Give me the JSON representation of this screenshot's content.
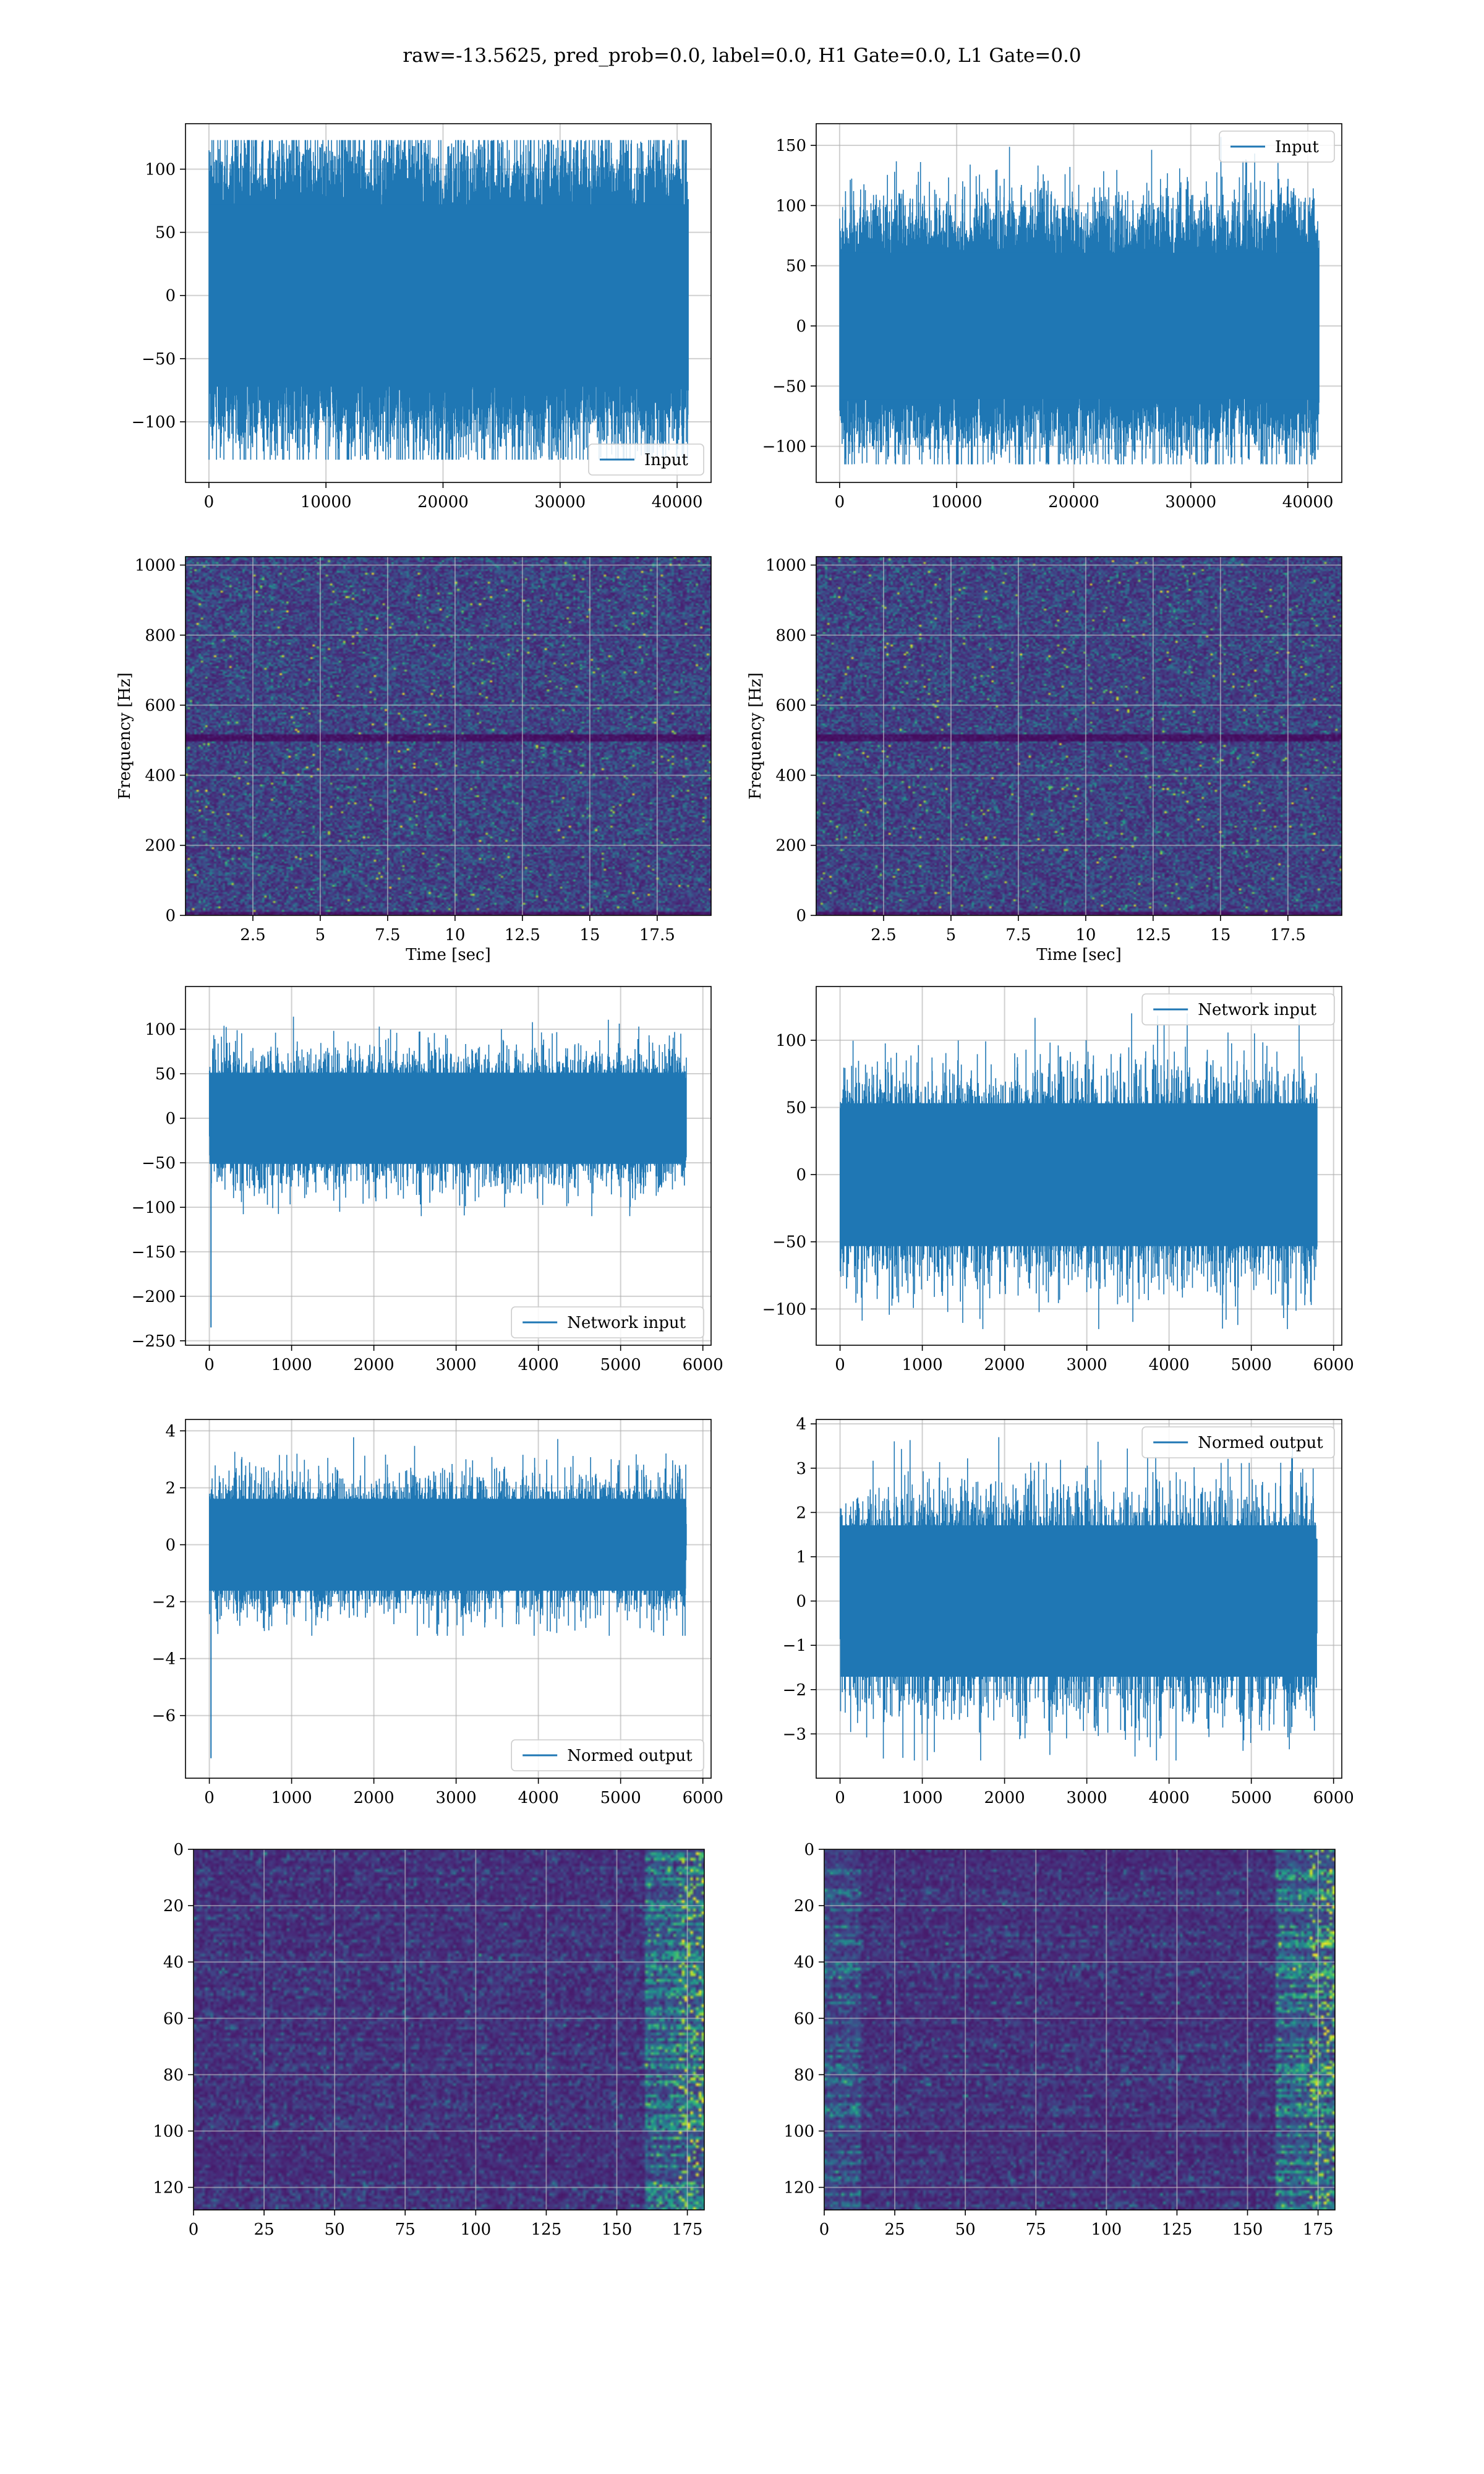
{
  "title": "raw=-13.5625, pred_prob=0.0, label=0.0, H1 Gate=0.0, L1 Gate=0.0",
  "colors": {
    "line": "#1f77b4",
    "grid": "#b0b0b0",
    "viridis_dark": "#440154",
    "viridis_mid": "#21918c",
    "viridis_light": "#fde725"
  },
  "chart_data": [
    {
      "id": "p11",
      "type": "line",
      "legend": "Input",
      "legend_loc": "lower-right",
      "grid": true,
      "xlim": [
        -2000,
        42900
      ],
      "ylim": [
        -148,
        136
      ],
      "xticks": [
        0,
        10000,
        20000,
        30000,
        40000
      ],
      "yticks": [
        -100,
        -50,
        0,
        50,
        100
      ],
      "signal": {
        "n": 40960,
        "std": 38,
        "range": [
          -130,
          123
        ]
      }
    },
    {
      "id": "p12",
      "type": "line",
      "legend": "Input",
      "legend_loc": "upper-right",
      "grid": true,
      "xlim": [
        -2000,
        42900
      ],
      "ylim": [
        -130,
        168
      ],
      "xticks": [
        0,
        10000,
        20000,
        30000,
        40000
      ],
      "yticks": [
        -100,
        -50,
        0,
        50,
        100,
        150
      ],
      "signal": {
        "n": 40960,
        "std": 32,
        "range": [
          -115,
          157
        ]
      }
    },
    {
      "id": "p21",
      "type": "heatmap",
      "xlabel": "Time [sec]",
      "ylabel": "Frequency [Hz]",
      "grid": true,
      "xlim": [
        0,
        19.5
      ],
      "ylim": [
        0,
        1024
      ],
      "xticks": [
        2.5,
        5.0,
        7.5,
        10.0,
        12.5,
        15.0,
        17.5
      ],
      "yticks": [
        0,
        200,
        400,
        600,
        800,
        1000
      ],
      "colormap": "viridis",
      "dark_band_hz": [
        495,
        515
      ]
    },
    {
      "id": "p22",
      "type": "heatmap",
      "xlabel": "Time [sec]",
      "ylabel": "Frequency [Hz]",
      "grid": true,
      "xlim": [
        0,
        19.5
      ],
      "ylim": [
        0,
        1024
      ],
      "xticks": [
        2.5,
        5.0,
        7.5,
        10.0,
        12.5,
        15.0,
        17.5
      ],
      "yticks": [
        0,
        200,
        400,
        600,
        800,
        1000
      ],
      "colormap": "viridis",
      "dark_band_hz": [
        495,
        515
      ]
    },
    {
      "id": "p31",
      "type": "line",
      "legend": "Network input",
      "legend_loc": "lower-right",
      "grid": true,
      "xlim": [
        -290,
        6100
      ],
      "ylim": [
        -255,
        148
      ],
      "xticks": [
        0,
        1000,
        2000,
        3000,
        4000,
        5000,
        6000
      ],
      "yticks": [
        -250,
        -200,
        -150,
        -100,
        -50,
        0,
        50,
        100
      ],
      "signal": {
        "n": 5800,
        "std": 27,
        "range": [
          -110,
          130
        ],
        "spike_min": -235
      }
    },
    {
      "id": "p32",
      "type": "line",
      "legend": "Network input",
      "legend_loc": "upper-right",
      "grid": true,
      "xlim": [
        -290,
        6100
      ],
      "ylim": [
        -127,
        140
      ],
      "xticks": [
        0,
        1000,
        2000,
        3000,
        4000,
        5000,
        6000
      ],
      "yticks": [
        -100,
        -50,
        0,
        50,
        100
      ],
      "signal": {
        "n": 5800,
        "std": 28,
        "range": [
          -115,
          120
        ]
      }
    },
    {
      "id": "p41",
      "type": "line",
      "legend": "Normed output",
      "legend_loc": "lower-right",
      "grid": true,
      "xlim": [
        -290,
        6100
      ],
      "ylim": [
        -8.2,
        4.4
      ],
      "xticks": [
        0,
        1000,
        2000,
        3000,
        4000,
        5000,
        6000
      ],
      "yticks": [
        -6,
        -4,
        -2,
        0,
        2,
        4
      ],
      "signal": {
        "n": 5800,
        "std": 0.85,
        "range": [
          -3.2,
          4.0
        ],
        "spike_min": -7.5
      }
    },
    {
      "id": "p42",
      "type": "line",
      "legend": "Normed output",
      "legend_loc": "upper-right",
      "grid": true,
      "xlim": [
        -290,
        6100
      ],
      "ylim": [
        -4.0,
        4.1
      ],
      "xticks": [
        0,
        1000,
        2000,
        3000,
        4000,
        5000,
        6000
      ],
      "yticks": [
        -3,
        -2,
        -1,
        0,
        1,
        2,
        3,
        4
      ],
      "signal": {
        "n": 5800,
        "std": 0.9,
        "range": [
          -3.6,
          3.7
        ]
      }
    },
    {
      "id": "p51",
      "type": "heatmap",
      "grid": true,
      "y_inverted": true,
      "xlim": [
        0,
        181
      ],
      "ylim": [
        0,
        128
      ],
      "xticks": [
        0,
        25,
        50,
        75,
        100,
        125,
        150,
        175
      ],
      "yticks": [
        0,
        20,
        40,
        60,
        80,
        100,
        120
      ],
      "colormap": "viridis"
    },
    {
      "id": "p52",
      "type": "heatmap",
      "grid": true,
      "y_inverted": true,
      "xlim": [
        0,
        181
      ],
      "ylim": [
        0,
        128
      ],
      "xticks": [
        0,
        25,
        50,
        75,
        100,
        125,
        150,
        175
      ],
      "yticks": [
        0,
        20,
        40,
        60,
        80,
        100,
        120
      ],
      "colormap": "viridis"
    }
  ]
}
